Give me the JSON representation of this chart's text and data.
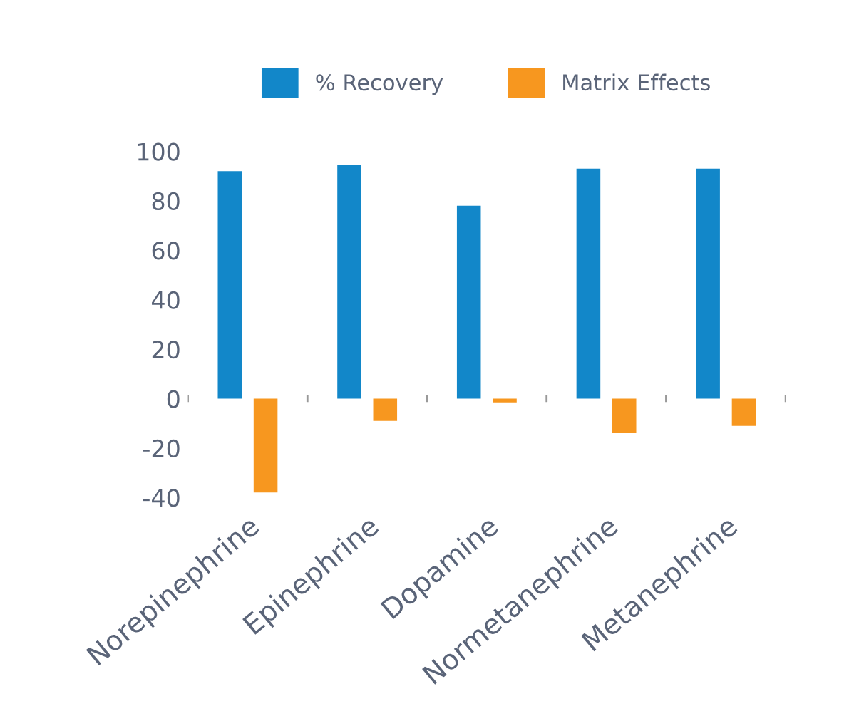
{
  "chart_data": {
    "type": "bar",
    "categories": [
      "Norepinephrine",
      "Epinephrine",
      "Dopamine",
      "Normetanephrine",
      "Metanephrine"
    ],
    "series": [
      {
        "name": "% Recovery",
        "color": "#1287c9",
        "values": [
          92,
          94.5,
          78,
          93,
          93
        ]
      },
      {
        "name": "Matrix Effects",
        "color": "#f7971f",
        "values": [
          -38,
          -9,
          -1.5,
          -14,
          -11
        ]
      }
    ],
    "ylim": [
      -40,
      100
    ],
    "yticks": [
      -40,
      -20,
      0,
      20,
      40,
      60,
      80,
      100
    ],
    "grid": false,
    "legend": "top"
  }
}
